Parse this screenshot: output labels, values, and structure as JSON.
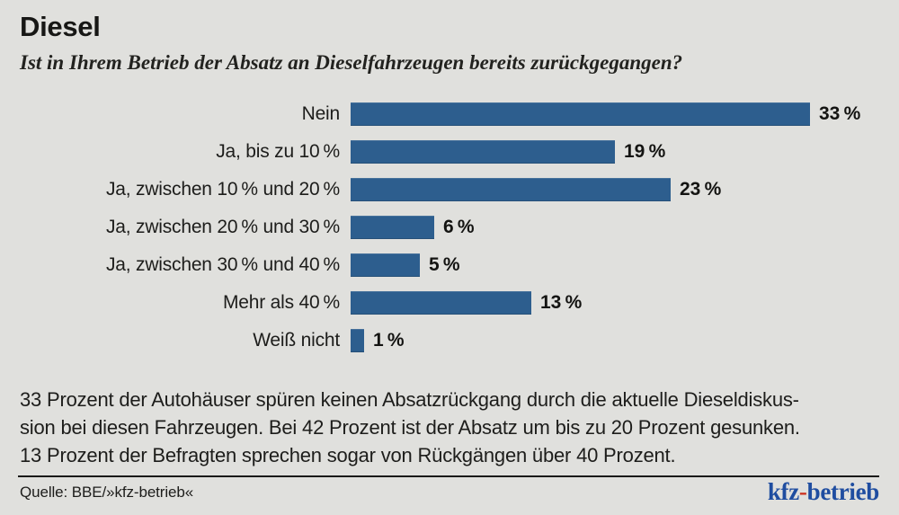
{
  "page": {
    "title": "Diesel",
    "subtitle": "Ist in Ihrem Betrieb der Absatz an Dieselfahrzeugen bereits zurückgegangen?"
  },
  "chart_data": {
    "type": "bar",
    "orientation": "horizontal",
    "title": "Diesel",
    "subtitle": "Ist in Ihrem Betrieb der Absatz an Dieselfahrzeugen bereits zurückgegangen?",
    "categories": [
      "Nein",
      "Ja, bis zu 10 %",
      "Ja, zwischen 10 % und 20 %",
      "Ja, zwischen 20 % und 30 %",
      "Ja, zwischen 30 % und 40 %",
      "Mehr als 40 %",
      "Weiß nicht"
    ],
    "values": [
      33,
      19,
      23,
      6,
      5,
      13,
      1
    ],
    "value_labels": [
      "33 %",
      "19 %",
      "23 %",
      "6 %",
      "5 %",
      "13 %",
      "1 %"
    ],
    "unit": "%",
    "xlim": [
      0,
      33
    ],
    "grid": false,
    "legend": "none",
    "bar_color": "#2d5e8e"
  },
  "summary": {
    "lines": [
      "33 Prozent der Autohäuser spüren keinen Absatzrückgang durch die aktuelle Dieseldiskus-",
      "sion bei diesen Fahrzeugen. Bei 42 Prozent ist der Absatz um bis zu 20 Prozent gesunken.",
      "13 Prozent der Befragten sprechen sogar von Rückgängen über 40 Prozent."
    ]
  },
  "footer": {
    "source": "Quelle: BBE/»kfz-betrieb«",
    "logo": {
      "prefix": "kfz",
      "hyphen": "-",
      "suffix": "betrieb"
    }
  },
  "colors": {
    "background": "#e0e0dd",
    "bar": "#2d5e8e",
    "text": "#1d1d1b",
    "logo_blue": "#1f4da0",
    "logo_red": "#cc3322"
  }
}
